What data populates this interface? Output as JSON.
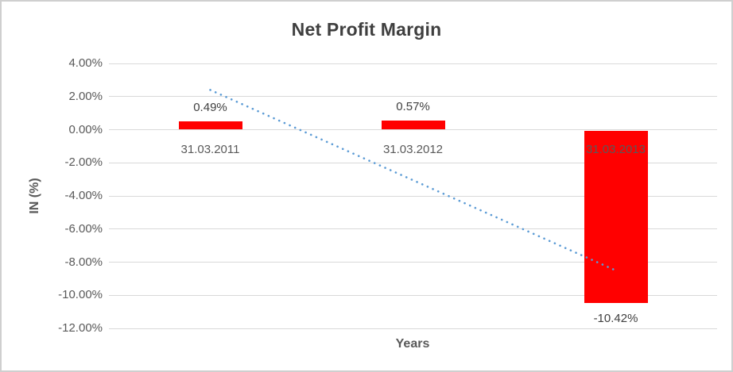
{
  "chart_data": {
    "type": "bar",
    "title": "Net Profit Margin",
    "xlabel": "Years",
    "ylabel": "IN (%)",
    "categories": [
      "31.03.2011",
      "31.03.2012",
      "31.03.2013"
    ],
    "values": [
      0.49,
      0.57,
      -10.42
    ],
    "data_labels": [
      "0.49%",
      "0.57%",
      "-10.42%"
    ],
    "ylim": [
      -12,
      4
    ],
    "yticks": [
      4,
      2,
      0,
      -2,
      -4,
      -6,
      -8,
      -10,
      -12
    ],
    "ytick_labels": [
      "4.00%",
      "2.00%",
      "0.00%",
      "-2.00%",
      "-4.00%",
      "-6.00%",
      "-8.00%",
      "-10.00%",
      "-12.00%"
    ],
    "grid": true,
    "legend": "none",
    "bar_color": "#ff0000",
    "trendline": {
      "style": "dotted",
      "color": "#5b9bd5",
      "start_category_index": 0,
      "start_value_pct": 2.4,
      "end_category_index": 2,
      "end_value_pct": -8.5
    }
  },
  "colors": {
    "title_text": "#3f3f3f",
    "axis_text": "#595959",
    "data_label_text": "#404040",
    "gridline": "#d9d9d9",
    "frame_border": "#cfcfcf",
    "background": "#ffffff"
  }
}
